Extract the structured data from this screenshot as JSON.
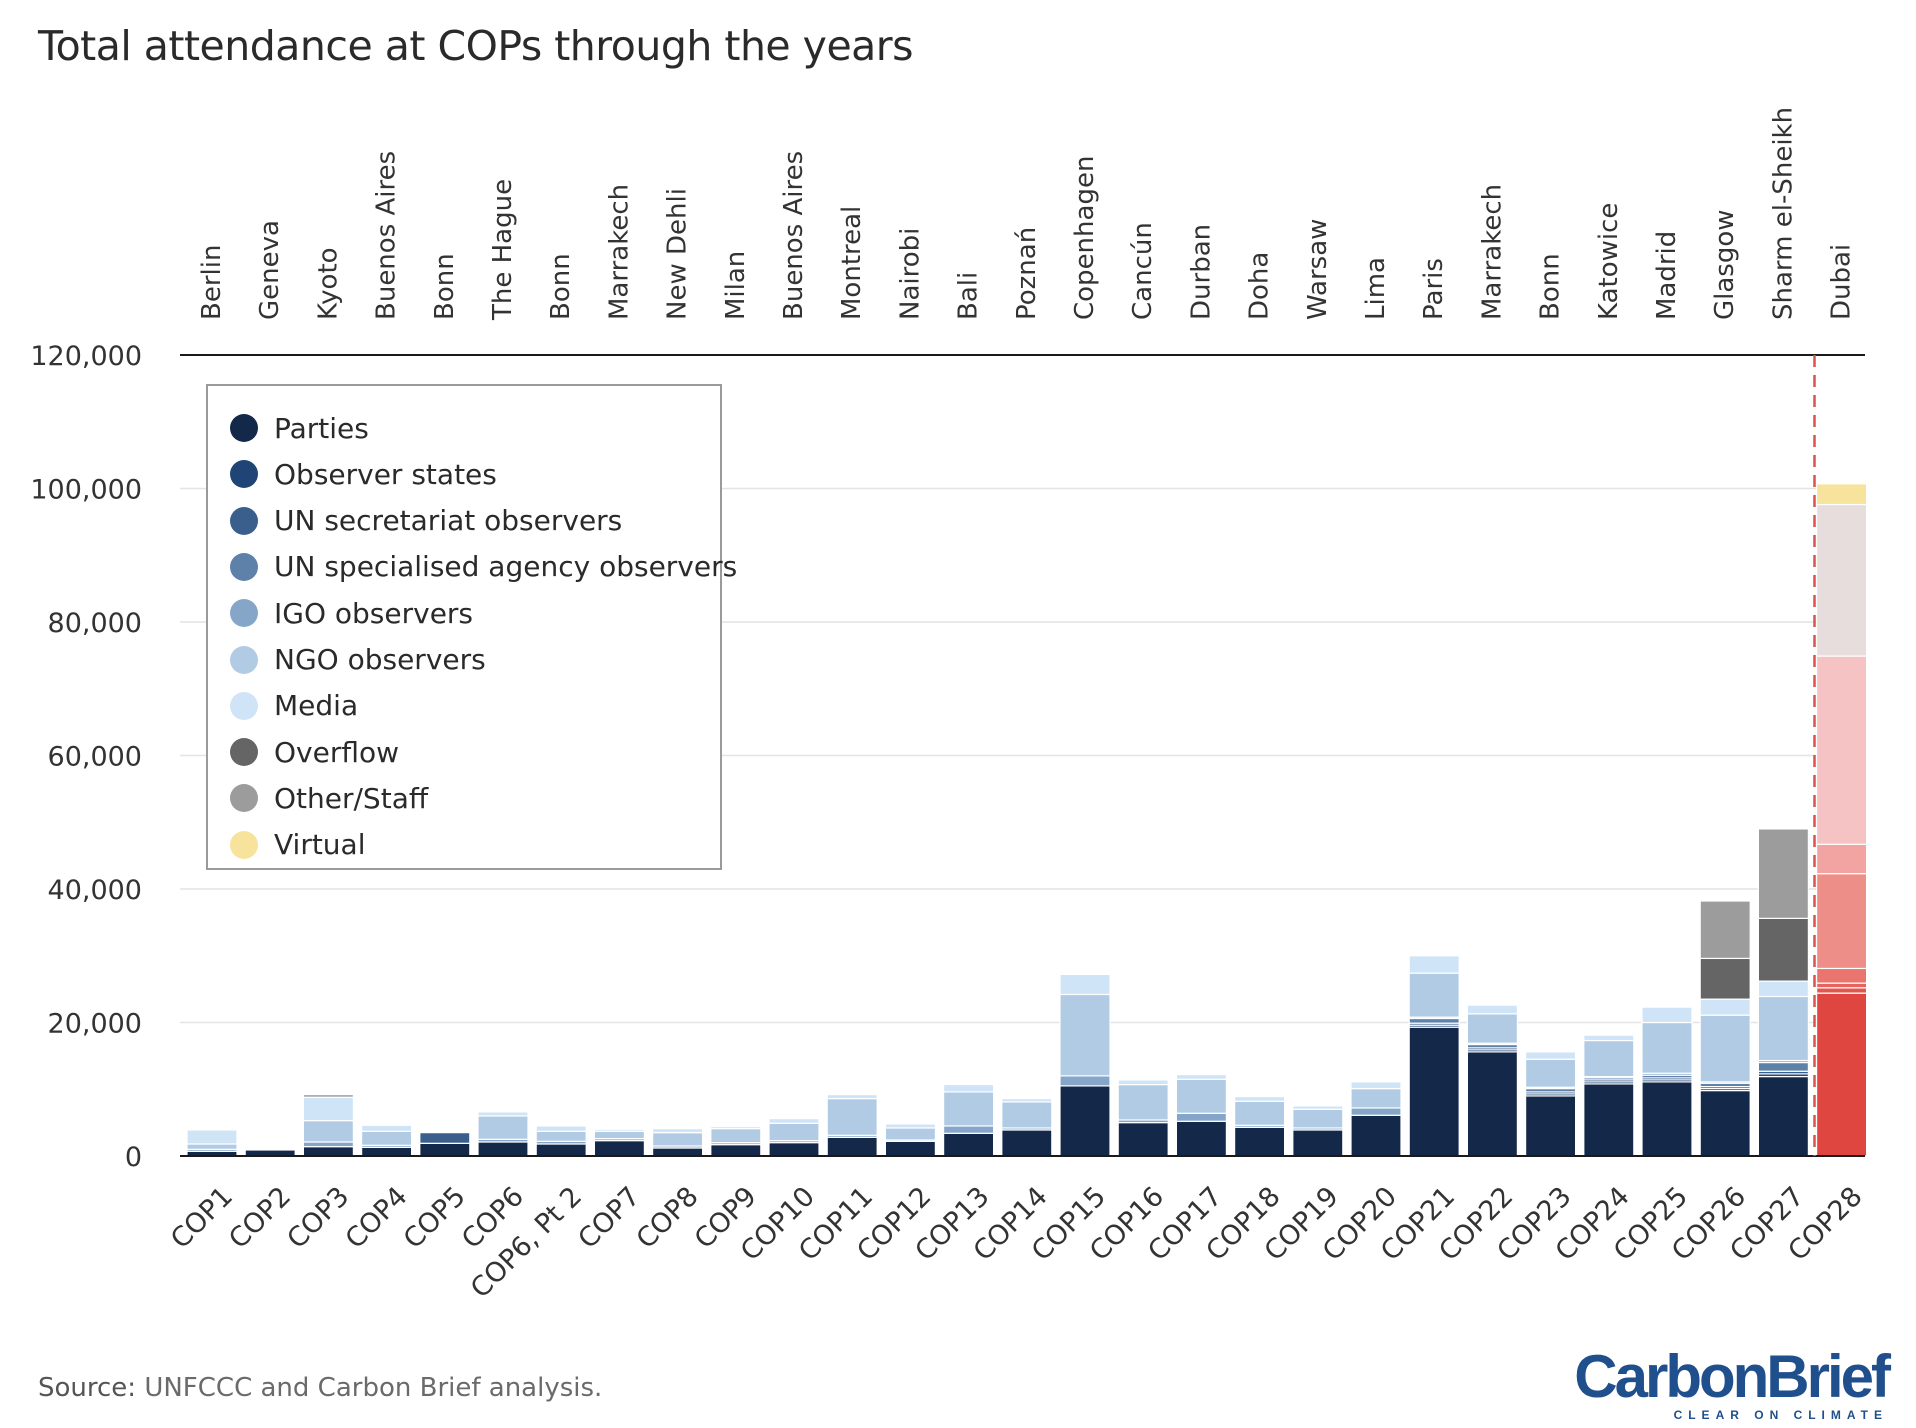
{
  "title": "Total attendance at COPs through the years",
  "source": {
    "label": "Source:",
    "text": "UNFCCC and Carbon Brief analysis."
  },
  "logo": {
    "word": "CarbonBrief",
    "tagline": "CLEAR ON CLIMATE"
  },
  "colors": {
    "Parties": "#14284a",
    "Observer states": "#1f4577",
    "UN secretariat observers": "#3b5f8c",
    "UN specialised agency observers": "#5e81aa",
    "IGO observers": "#86a6c9",
    "NGO observers": "#b0cbe3",
    "Media": "#cfe4f6",
    "Overflow": "#656565",
    "Other/Staff": "#9c9c9c",
    "Virtual": "#f7e39b",
    "highlight": {
      "Parties": "#de463f",
      "Observer states": "#e35650",
      "UN secretariat observers": "#e6645e",
      "UN specialised agency observers": "#ea756f",
      "IGO observers": "#ee8e89",
      "NGO observers": "#f2a4a3",
      "Media": "#f5c3c4",
      "Overflow": "#f5c3c4",
      "Other/Staff": "#e7dddd",
      "Virtual": "#f7e39b"
    },
    "divider": "#d9534f"
  },
  "chart_data": {
    "type": "bar",
    "stacked": true,
    "title": "Total attendance at COPs through the years",
    "xlabel": "",
    "ylabel": "",
    "ylim": [
      0,
      120000
    ],
    "yticks": [
      "0",
      "20,000",
      "40,000",
      "60,000",
      "80,000",
      "100,000",
      "120,000"
    ],
    "grid": true,
    "legend": "top-left",
    "highlight_category": "COP28",
    "categories": [
      "COP1",
      "COP2",
      "COP3",
      "COP4",
      "COP5",
      "COP6",
      "COP6, Pt 2",
      "COP7",
      "COP8",
      "COP9",
      "COP10",
      "COP11",
      "COP12",
      "COP13",
      "COP14",
      "COP15",
      "COP16",
      "COP17",
      "COP18",
      "COP19",
      "COP20",
      "COP21",
      "COP22",
      "COP23",
      "COP24",
      "COP25",
      "COP26",
      "COP27",
      "COP28"
    ],
    "locations": [
      "Berlin",
      "Geneva",
      "Kyoto",
      "Buenos Aires",
      "Bonn",
      "The Hague",
      "Bonn",
      "Marrakech",
      "New Dehli",
      "Milan",
      "Buenos Aires",
      "Montreal",
      "Nairobi",
      "Bali",
      "Poznań",
      "Copenhagen",
      "Cancún",
      "Durban",
      "Doha",
      "Warsaw",
      "Lima",
      "Paris",
      "Marrakech",
      "Bonn",
      "Katowice",
      "Madrid",
      "Glasgow",
      "Sharm el-Sheikh",
      "Dubai"
    ],
    "series": [
      {
        "name": "Parties",
        "values": [
          700,
          900,
          1400,
          1300,
          1900,
          2100,
          1800,
          2300,
          1200,
          1700,
          2000,
          2800,
          2200,
          3400,
          3900,
          10500,
          5000,
          5200,
          4300,
          3900,
          6100,
          19300,
          15600,
          9000,
          10800,
          11100,
          9800,
          11900,
          24400
        ]
      },
      {
        "name": "Observer states",
        "values": [
          0,
          0,
          0,
          0,
          0,
          0,
          0,
          0,
          0,
          0,
          0,
          0,
          0,
          0,
          0,
          0,
          0,
          0,
          0,
          0,
          0,
          300,
          300,
          300,
          300,
          300,
          300,
          400,
          800
        ]
      },
      {
        "name": "UN secretariat observers",
        "values": [
          0,
          0,
          0,
          0,
          1600,
          0,
          0,
          0,
          0,
          0,
          0,
          0,
          0,
          0,
          0,
          0,
          0,
          0,
          0,
          0,
          0,
          300,
          300,
          300,
          300,
          300,
          300,
          400,
          700
        ]
      },
      {
        "name": "UN specialised agency observers",
        "values": [
          0,
          0,
          0,
          0,
          0,
          0,
          0,
          0,
          0,
          0,
          0,
          0,
          0,
          0,
          0,
          0,
          0,
          0,
          0,
          0,
          0,
          700,
          500,
          500,
          300,
          400,
          500,
          1300,
          2200
        ]
      },
      {
        "name": "IGO observers",
        "values": [
          300,
          0,
          700,
          300,
          0,
          400,
          400,
          300,
          300,
          300,
          300,
          300,
          200,
          1100,
          300,
          1500,
          400,
          1200,
          300,
          300,
          1100,
          200,
          200,
          200,
          200,
          300,
          200,
          300,
          14200
        ]
      },
      {
        "name": "NGO observers",
        "values": [
          800,
          0,
          3200,
          2100,
          0,
          3500,
          1500,
          1100,
          2000,
          2100,
          2600,
          5500,
          1800,
          5100,
          3900,
          12200,
          5300,
          5100,
          3600,
          2800,
          2900,
          6600,
          4400,
          4200,
          5400,
          7600,
          10000,
          9600,
          4400
        ]
      },
      {
        "name": "Media",
        "values": [
          2100,
          0,
          3500,
          900,
          0,
          600,
          800,
          300,
          600,
          300,
          700,
          600,
          600,
          1100,
          500,
          3000,
          700,
          700,
          700,
          500,
          1000,
          2600,
          1300,
          1100,
          800,
          2300,
          2400,
          2300,
          28200
        ]
      },
      {
        "name": "Overflow",
        "values": [
          0,
          0,
          0,
          0,
          0,
          0,
          0,
          0,
          0,
          0,
          0,
          0,
          0,
          0,
          0,
          0,
          0,
          0,
          0,
          0,
          0,
          0,
          0,
          0,
          0,
          0,
          6100,
          9400,
          0
        ]
      },
      {
        "name": "Other/Staff",
        "values": [
          0,
          0,
          400,
          0,
          0,
          0,
          0,
          0,
          0,
          0,
          0,
          0,
          0,
          0,
          0,
          0,
          0,
          0,
          0,
          0,
          0,
          0,
          0,
          0,
          0,
          0,
          8600,
          13400,
          22700
        ]
      },
      {
        "name": "Virtual",
        "values": [
          0,
          0,
          0,
          0,
          0,
          0,
          0,
          0,
          0,
          0,
          0,
          0,
          0,
          0,
          0,
          0,
          0,
          0,
          0,
          0,
          0,
          0,
          0,
          0,
          0,
          0,
          0,
          0,
          3100
        ]
      }
    ]
  }
}
